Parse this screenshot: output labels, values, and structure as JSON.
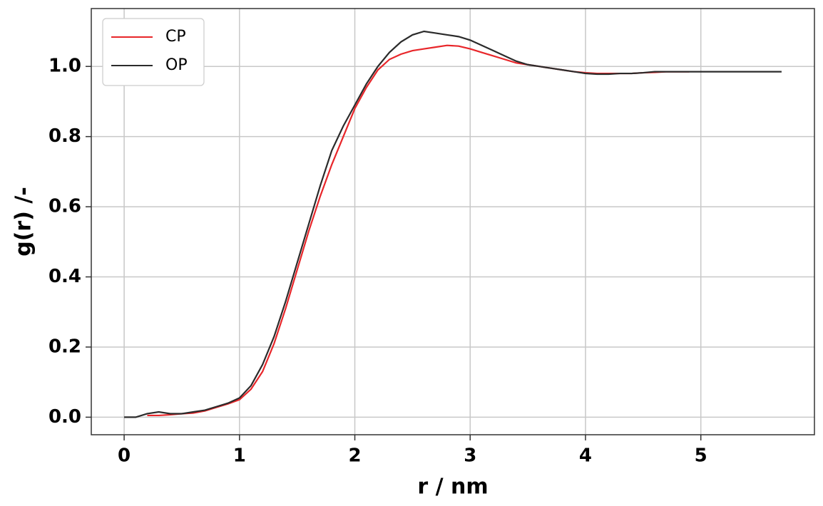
{
  "chart_data": {
    "type": "line",
    "x_label": "r / nm",
    "y_label": "g(r) /-",
    "x": [
      0,
      0.1,
      0.2,
      0.3,
      0.4,
      0.5,
      0.6,
      0.7,
      0.8,
      0.9,
      1.0,
      1.1,
      1.2,
      1.3,
      1.4,
      1.5,
      1.6,
      1.7,
      1.8,
      1.9,
      2.0,
      2.1,
      2.2,
      2.3,
      2.4,
      2.5,
      2.6,
      2.7,
      2.8,
      2.9,
      3.0,
      3.1,
      3.2,
      3.3,
      3.4,
      3.5,
      3.6,
      3.7,
      3.8,
      3.9,
      4.0,
      4.1,
      4.2,
      4.3,
      4.4,
      4.5,
      4.6,
      4.7,
      4.8,
      4.9,
      5.0,
      5.1,
      5.2,
      5.3,
      5.4,
      5.5,
      5.6,
      5.7
    ],
    "series": [
      {
        "name": "CP",
        "color": "#e8262a",
        "values": [
          null,
          null,
          0.005,
          0.005,
          0.007,
          0.01,
          0.012,
          0.018,
          0.028,
          0.038,
          0.05,
          0.08,
          0.13,
          0.21,
          0.31,
          0.42,
          0.53,
          0.63,
          0.72,
          0.8,
          0.88,
          0.94,
          0.99,
          1.02,
          1.035,
          1.045,
          1.05,
          1.055,
          1.06,
          1.058,
          1.05,
          1.04,
          1.03,
          1.02,
          1.01,
          1.005,
          1.0,
          0.995,
          0.99,
          0.985,
          0.982,
          0.98,
          0.98,
          0.98,
          0.98,
          0.982,
          0.983,
          0.985,
          0.985,
          0.985,
          null,
          null,
          null,
          null,
          null,
          null,
          null,
          null
        ]
      },
      {
        "name": "OP",
        "color": "#2b2b2b",
        "values": [
          0.0,
          0.0,
          0.01,
          0.015,
          0.01,
          0.01,
          0.015,
          0.02,
          0.03,
          0.04,
          0.055,
          0.09,
          0.15,
          0.23,
          0.33,
          0.44,
          0.55,
          0.66,
          0.76,
          0.83,
          0.89,
          0.95,
          1.0,
          1.04,
          1.07,
          1.09,
          1.1,
          1.095,
          1.09,
          1.085,
          1.075,
          1.06,
          1.045,
          1.03,
          1.015,
          1.005,
          1.0,
          0.995,
          0.99,
          0.985,
          0.98,
          0.978,
          0.978,
          0.98,
          0.98,
          0.982,
          0.985,
          0.985,
          0.985,
          0.985,
          0.985,
          0.985,
          0.985,
          0.985,
          0.985,
          0.985,
          0.985,
          0.985
        ]
      }
    ],
    "xlim": [
      -0.285,
      5.985
    ],
    "xticks": [
      0,
      1,
      2,
      3,
      4,
      5
    ],
    "ylim": [
      -0.05,
      1.165
    ],
    "yticks": [
      {
        "value": 0,
        "label": "0.0"
      },
      0.2,
      0.4,
      0.6,
      0.8,
      {
        "value": 1,
        "label": "1.0"
      }
    ],
    "grid": true,
    "legend": "upper left"
  }
}
